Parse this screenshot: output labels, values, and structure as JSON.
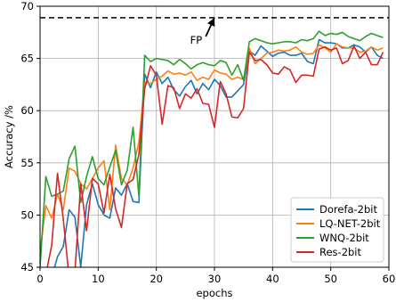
{
  "chart_data": {
    "type": "line",
    "title": "",
    "xlabel": "epochs",
    "ylabel": "Accuracy /%",
    "xlim": [
      0,
      60
    ],
    "ylim": [
      45,
      70
    ],
    "xticks": [
      0,
      10,
      20,
      30,
      40,
      50,
      60
    ],
    "yticks": [
      45,
      50,
      55,
      60,
      65,
      70
    ],
    "x_tick_labels": [
      "0",
      "10",
      "20",
      "30",
      "40",
      "50",
      "60"
    ],
    "y_tick_labels": [
      "45",
      "50",
      "55",
      "60",
      "65",
      "70"
    ],
    "grid": true,
    "legend_position": "lower-right",
    "reference_line": {
      "y": 68.9,
      "style": "dashed",
      "color": "#000000"
    },
    "annotation": {
      "text": "FP",
      "arrow_from": [
        28.5,
        67.1
      ],
      "arrow_to": [
        30,
        68.9
      ]
    },
    "x": [
      0,
      1,
      2,
      3,
      4,
      5,
      6,
      7,
      8,
      9,
      10,
      11,
      12,
      13,
      14,
      15,
      16,
      17,
      18,
      19,
      20,
      21,
      22,
      23,
      24,
      25,
      26,
      27,
      28,
      29,
      30,
      31,
      32,
      33,
      34,
      35,
      36,
      37,
      38,
      39,
      40,
      41,
      42,
      43,
      44,
      45,
      46,
      47,
      48,
      49,
      50,
      51,
      52,
      53,
      54,
      55,
      56,
      57,
      58,
      59
    ],
    "series": [
      {
        "name": "Dorefa-2bit",
        "color": "#1f77b4",
        "values": [
          44.2,
          44.0,
          44.0,
          46.0,
          47.0,
          50.5,
          49.8,
          45.0,
          51.0,
          53.0,
          51.0,
          50.0,
          49.7,
          52.6,
          51.9,
          53.0,
          51.3,
          51.2,
          63.5,
          62.2,
          63.7,
          62.6,
          63.2,
          62.0,
          61.4,
          62.3,
          62.9,
          61.6,
          62.6,
          62.0,
          63.0,
          62.4,
          61.3,
          61.3,
          61.9,
          62.5,
          65.7,
          65.3,
          66.2,
          65.7,
          65.2,
          65.5,
          65.6,
          65.3,
          65.3,
          65.5,
          64.7,
          64.5,
          66.8,
          66.5,
          66.5,
          66.4,
          66.0,
          66.0,
          66.3,
          66.1,
          65.6,
          66.1,
          65.3,
          65.0
        ]
      },
      {
        "name": "LQ-NET-2bit",
        "color": "#ff7f0e",
        "values": [
          46.5,
          50.9,
          49.7,
          52.0,
          50.5,
          54.5,
          54.2,
          53.0,
          52.5,
          53.5,
          54.5,
          55.2,
          50.5,
          56.7,
          53.5,
          52.9,
          54.5,
          57.0,
          62.7,
          62.6,
          63.0,
          63.3,
          63.8,
          63.5,
          63.6,
          63.4,
          63.7,
          62.9,
          63.2,
          63.0,
          63.9,
          63.6,
          63.5,
          63.0,
          63.2,
          63.0,
          66.0,
          64.5,
          65.0,
          65.5,
          65.6,
          65.8,
          65.7,
          65.8,
          66.1,
          65.6,
          65.4,
          65.5,
          66.3,
          66.0,
          65.6,
          66.4,
          66.1,
          66.0,
          66.0,
          65.6,
          65.7,
          66.1,
          65.8,
          66.0
        ]
      },
      {
        "name": "WNQ-2bit",
        "color": "#2ca02c",
        "values": [
          45.0,
          53.7,
          51.8,
          52.0,
          52.3,
          55.4,
          56.6,
          51.2,
          53.7,
          55.6,
          53.5,
          52.9,
          54.6,
          56.2,
          52.9,
          54.3,
          58.4,
          51.8,
          65.3,
          64.7,
          65.0,
          64.9,
          64.8,
          64.4,
          64.9,
          64.5,
          64.0,
          64.4,
          64.6,
          64.4,
          64.3,
          64.8,
          64.6,
          63.4,
          64.4,
          62.9,
          66.6,
          66.9,
          66.7,
          66.5,
          66.4,
          66.5,
          66.6,
          66.6,
          66.5,
          66.8,
          66.7,
          66.9,
          67.6,
          67.2,
          67.4,
          67.3,
          67.5,
          67.1,
          66.9,
          66.7,
          67.1,
          67.4,
          67.2,
          67.0
        ]
      },
      {
        "name": "Res-2bit",
        "color": "#d62728",
        "values": [
          44.4,
          44.3,
          47.1,
          54.0,
          49.6,
          44.0,
          44.6,
          53.0,
          48.5,
          53.5,
          53.0,
          50.2,
          53.9,
          50.6,
          48.8,
          53.0,
          53.4,
          55.8,
          62.1,
          64.3,
          63.4,
          58.7,
          62.4,
          62.2,
          60.2,
          61.6,
          61.2,
          62.1,
          60.7,
          60.6,
          58.4,
          62.8,
          61.6,
          59.4,
          59.3,
          60.2,
          65.6,
          64.8,
          64.9,
          64.4,
          63.6,
          63.5,
          64.2,
          63.9,
          62.7,
          63.4,
          63.4,
          63.3,
          65.9,
          66.1,
          65.8,
          66.0,
          64.5,
          64.8,
          66.2,
          65.0,
          65.6,
          64.4,
          64.4,
          65.6
        ]
      }
    ]
  }
}
